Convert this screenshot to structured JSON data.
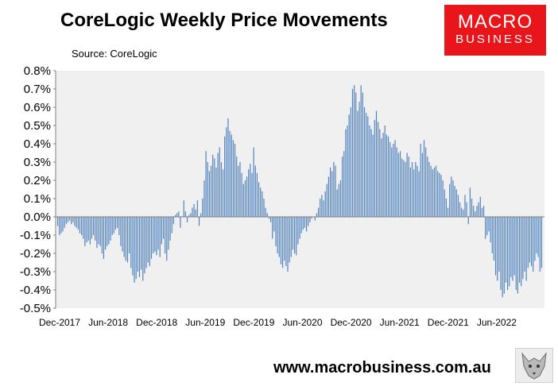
{
  "header": {
    "title": "CoreLogic Weekly Price Movements",
    "source": "Source: CoreLogic"
  },
  "logo": {
    "line1": "MACRO",
    "line2": "BUSINESS"
  },
  "footer": {
    "url": "www.macrobusiness.com.au"
  },
  "colors": {
    "bar": "#4f81bd",
    "plot_bg": "#f0f0f0",
    "brand_red": "#e8151b"
  },
  "chart_data": {
    "type": "bar",
    "title": "CoreLogic Weekly Price Movements",
    "xlabel": "",
    "ylabel": "",
    "ylim": [
      -0.5,
      0.8
    ],
    "y_ticks": [
      "-0.5%",
      "-0.4%",
      "-0.3%",
      "-0.2%",
      "-0.1%",
      "0.0%",
      "0.1%",
      "0.2%",
      "0.3%",
      "0.4%",
      "0.5%",
      "0.6%",
      "0.7%",
      "0.8%"
    ],
    "x_tick_labels": [
      "Dec-2017",
      "Jun-2018",
      "Dec-2018",
      "Jun-2019",
      "Dec-2019",
      "Jun-2020",
      "Dec-2020",
      "Jun-2021",
      "Dec-2021",
      "Jun-2022"
    ],
    "grid": false,
    "legend": "none",
    "series": [
      {
        "values": [
          -0.05,
          -0.1,
          -0.09,
          -0.08,
          -0.06,
          -0.04,
          -0.03,
          -0.02,
          -0.04,
          -0.03,
          -0.05,
          -0.06,
          -0.07,
          -0.09,
          -0.1,
          -0.12,
          -0.16,
          -0.14,
          -0.13,
          -0.15,
          -0.12,
          -0.1,
          -0.13,
          -0.17,
          -0.15,
          -0.16,
          -0.2,
          -0.23,
          -0.18,
          -0.16,
          -0.15,
          -0.13,
          -0.1,
          -0.09,
          -0.07,
          -0.06,
          -0.1,
          -0.16,
          -0.19,
          -0.22,
          -0.24,
          -0.25,
          -0.2,
          -0.28,
          -0.32,
          -0.36,
          -0.34,
          -0.3,
          -0.33,
          -0.29,
          -0.35,
          -0.31,
          -0.28,
          -0.25,
          -0.27,
          -0.23,
          -0.2,
          -0.19,
          -0.21,
          -0.18,
          -0.22,
          -0.15,
          -0.12,
          -0.2,
          -0.24,
          -0.18,
          -0.13,
          -0.09,
          -0.04,
          0.01,
          0.02,
          0.03,
          -0.06,
          0.0,
          0.09,
          0.03,
          -0.03,
          0.01,
          0.02,
          0.05,
          0.07,
          0.04,
          0.09,
          -0.05,
          0.02,
          0.1,
          0.2,
          0.36,
          0.3,
          0.25,
          0.28,
          0.34,
          0.32,
          0.27,
          0.35,
          0.38,
          0.3,
          0.26,
          0.44,
          0.49,
          0.54,
          0.47,
          0.45,
          0.42,
          0.4,
          0.33,
          0.28,
          0.3,
          0.24,
          0.18,
          0.2,
          0.22,
          0.26,
          0.29,
          0.24,
          0.38,
          0.28,
          0.24,
          0.19,
          0.16,
          0.14,
          0.1,
          0.05,
          0.02,
          -0.01,
          -0.03,
          -0.12,
          -0.08,
          -0.16,
          -0.2,
          -0.22,
          -0.26,
          -0.28,
          -0.24,
          -0.27,
          -0.3,
          -0.25,
          -0.22,
          -0.18,
          -0.2,
          -0.21,
          -0.15,
          -0.12,
          -0.09,
          -0.07,
          -0.06,
          -0.08,
          -0.05,
          -0.03,
          -0.01,
          0.0,
          -0.02,
          0.02,
          0.05,
          0.1,
          0.12,
          0.09,
          0.14,
          0.18,
          0.22,
          0.27,
          0.25,
          0.3,
          0.28,
          0.15,
          0.18,
          0.2,
          0.33,
          0.36,
          0.48,
          0.5,
          0.56,
          0.6,
          0.7,
          0.72,
          0.68,
          0.58,
          0.63,
          0.72,
          0.68,
          0.6,
          0.57,
          0.55,
          0.5,
          0.48,
          0.45,
          0.53,
          0.58,
          0.52,
          0.48,
          0.43,
          0.46,
          0.5,
          0.45,
          0.44,
          0.41,
          0.38,
          0.4,
          0.42,
          0.38,
          0.35,
          0.36,
          0.32,
          0.31,
          0.3,
          0.35,
          0.33,
          0.27,
          0.3,
          0.26,
          0.3,
          0.28,
          0.25,
          0.4,
          0.35,
          0.42,
          0.38,
          0.33,
          0.3,
          0.28,
          0.26,
          0.27,
          0.28,
          0.25,
          0.24,
          0.23,
          0.2,
          0.15,
          0.1,
          0.05,
          0.18,
          0.22,
          0.2,
          0.17,
          0.15,
          0.12,
          0.08,
          0.05,
          0.04,
          0.12,
          0.08,
          -0.04,
          0.16,
          0.1,
          0.06,
          0.03,
          0.06,
          0.08,
          0.11,
          0.05,
          0.06,
          -0.12,
          -0.1,
          -0.08,
          -0.14,
          -0.2,
          -0.24,
          -0.32,
          -0.35,
          -0.3,
          -0.4,
          -0.44,
          -0.42,
          -0.36,
          -0.4,
          -0.38,
          -0.33,
          -0.35,
          -0.32,
          -0.4,
          -0.42,
          -0.36,
          -0.38,
          -0.34,
          -0.3,
          -0.35,
          -0.28,
          -0.25,
          -0.27,
          -0.3,
          -0.24,
          -0.2,
          -0.22,
          -0.3,
          -0.28
        ]
      }
    ]
  }
}
